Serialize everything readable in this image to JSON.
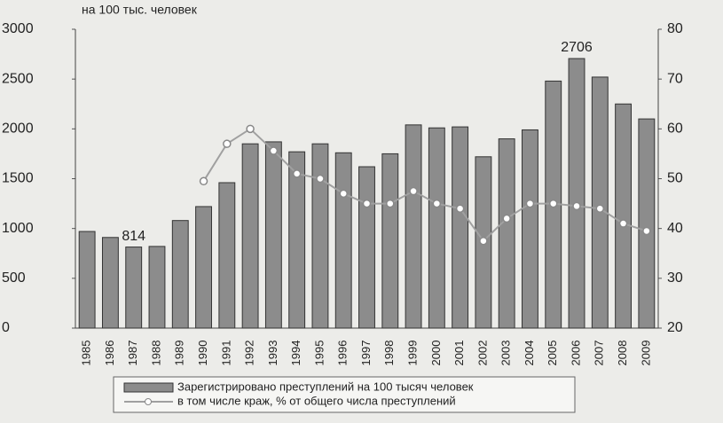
{
  "chart_data": {
    "type": "bar-line",
    "title": "на 100 тыс. человек",
    "categories": [
      "1985",
      "1986",
      "1987",
      "1988",
      "1989",
      "1990",
      "1991",
      "1992",
      "1993",
      "1994",
      "1995",
      "1996",
      "1997",
      "1998",
      "1999",
      "2000",
      "2001",
      "2002",
      "2003",
      "2004",
      "2005",
      "2006",
      "2007",
      "2008",
      "2009"
    ],
    "series": [
      {
        "name": "Зарегистрировано преступлений на 100 тысяч человек",
        "type": "bar",
        "color": "#8c8c8c",
        "values": [
          970,
          910,
          814,
          820,
          1080,
          1220,
          1460,
          1850,
          1870,
          1770,
          1850,
          1760,
          1620,
          1750,
          2040,
          2010,
          2020,
          1720,
          1900,
          1990,
          2480,
          2706,
          2520,
          2250,
          2100
        ]
      },
      {
        "name": "в том числе краж, % от общего числа преступлений",
        "type": "line",
        "axis": "y2",
        "color": "#a0a0a0",
        "values": [
          null,
          null,
          null,
          null,
          null,
          49.5,
          57,
          60,
          55.6,
          51,
          50,
          47,
          45,
          45,
          47.5,
          45,
          44,
          37.5,
          42,
          45,
          45,
          44.5,
          44,
          41,
          39.5
        ]
      }
    ],
    "labeled_points": [
      2,
      21
    ],
    "ylim": [
      0,
      3000
    ],
    "yticks": [
      0,
      500,
      1000,
      1500,
      2000,
      2500,
      3000
    ],
    "y2lim": [
      20,
      80
    ],
    "y2ticks": [
      20,
      30,
      40,
      50,
      60,
      70,
      80
    ],
    "legend": "bottom"
  }
}
